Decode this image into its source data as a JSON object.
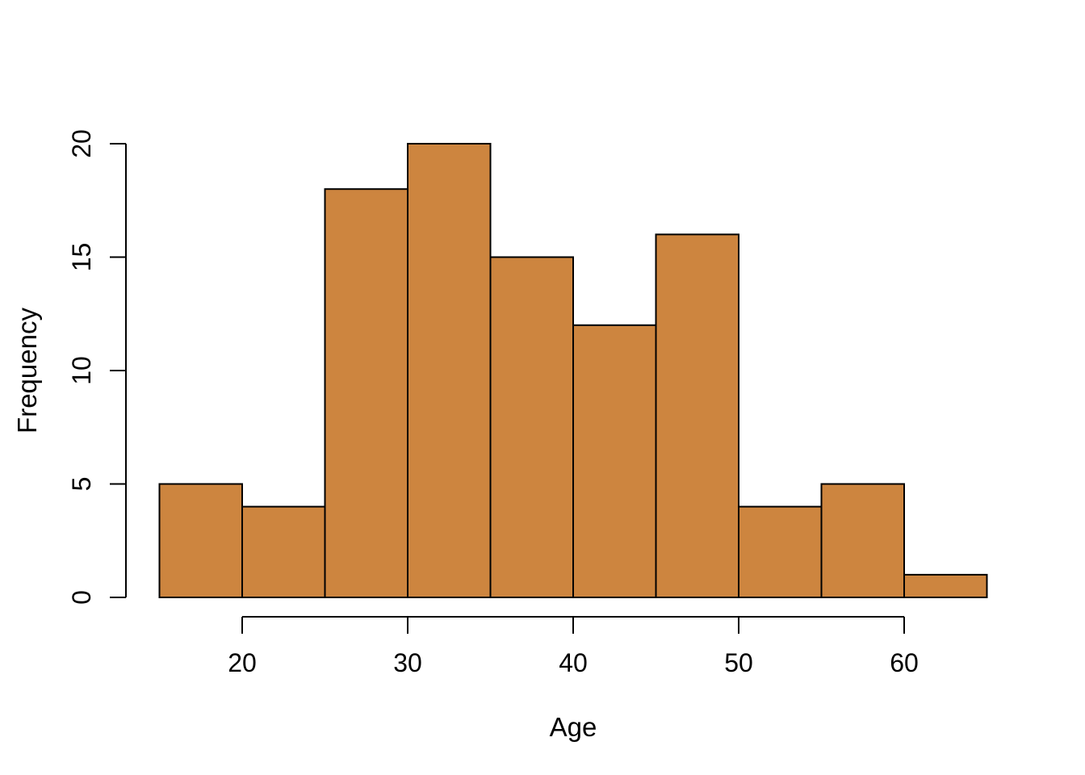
{
  "chart_data": {
    "type": "bar",
    "subtype": "histogram",
    "title": "",
    "xlabel": "Age",
    "ylabel": "Frequency",
    "bin_edges": [
      15,
      20,
      25,
      30,
      35,
      40,
      45,
      50,
      55,
      60,
      65
    ],
    "counts": [
      5,
      4,
      18,
      20,
      15,
      12,
      16,
      4,
      5,
      1
    ],
    "x_ticks": [
      20,
      30,
      40,
      50,
      60
    ],
    "y_ticks": [
      0,
      5,
      10,
      15,
      20
    ],
    "xlim": [
      15,
      65
    ],
    "ylim": [
      0,
      20
    ],
    "grid": false,
    "legend_position": "none",
    "colors": {
      "bar_fill": "#CD853F",
      "bar_border": "#000000",
      "axis": "#000000",
      "background": "#FFFFFF"
    }
  }
}
